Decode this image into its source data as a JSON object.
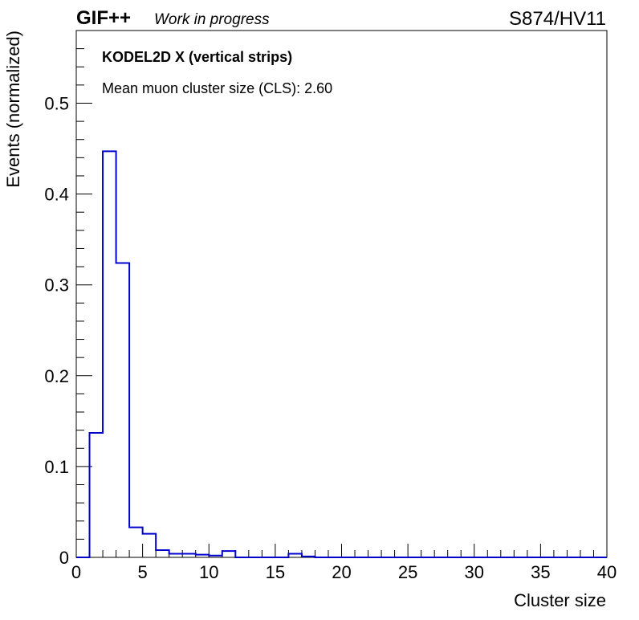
{
  "header": {
    "experiment": "GIF++",
    "status": "Work in progress",
    "run_label": "S874/HV11"
  },
  "annotations": {
    "detector": "KODEL2D X (vertical strips)",
    "mean_cls": "Mean muon cluster size (CLS): 2.60"
  },
  "colors": {
    "histogram": "#0000cc",
    "axes": "#000000"
  },
  "chart_data": {
    "type": "bar",
    "style": "step-histogram",
    "xlabel": "Cluster size",
    "ylabel": "Events (normalized)",
    "xlim": [
      0,
      40
    ],
    "ylim": [
      0,
      0.58
    ],
    "x_ticks": [
      0,
      5,
      10,
      15,
      20,
      25,
      30,
      35,
      40
    ],
    "y_ticks": [
      0,
      0.1,
      0.2,
      0.3,
      0.4,
      0.5
    ],
    "y_tick_labels": [
      "0",
      "0.1",
      "0.2",
      "0.3",
      "0.4",
      "0.5"
    ],
    "bin_width": 1,
    "bin_edges_start": 0,
    "values": [
      0,
      0.137,
      0.447,
      0.324,
      0.033,
      0.026,
      0.008,
      0.004,
      0.004,
      0.003,
      0.002,
      0.007,
      0.0,
      0.0,
      0.0,
      0.0,
      0.004,
      0.001,
      0,
      0,
      0,
      0,
      0,
      0,
      0,
      0,
      0,
      0,
      0,
      0,
      0,
      0,
      0,
      0,
      0,
      0,
      0,
      0,
      0,
      0
    ],
    "grid": false,
    "legend": "none"
  }
}
